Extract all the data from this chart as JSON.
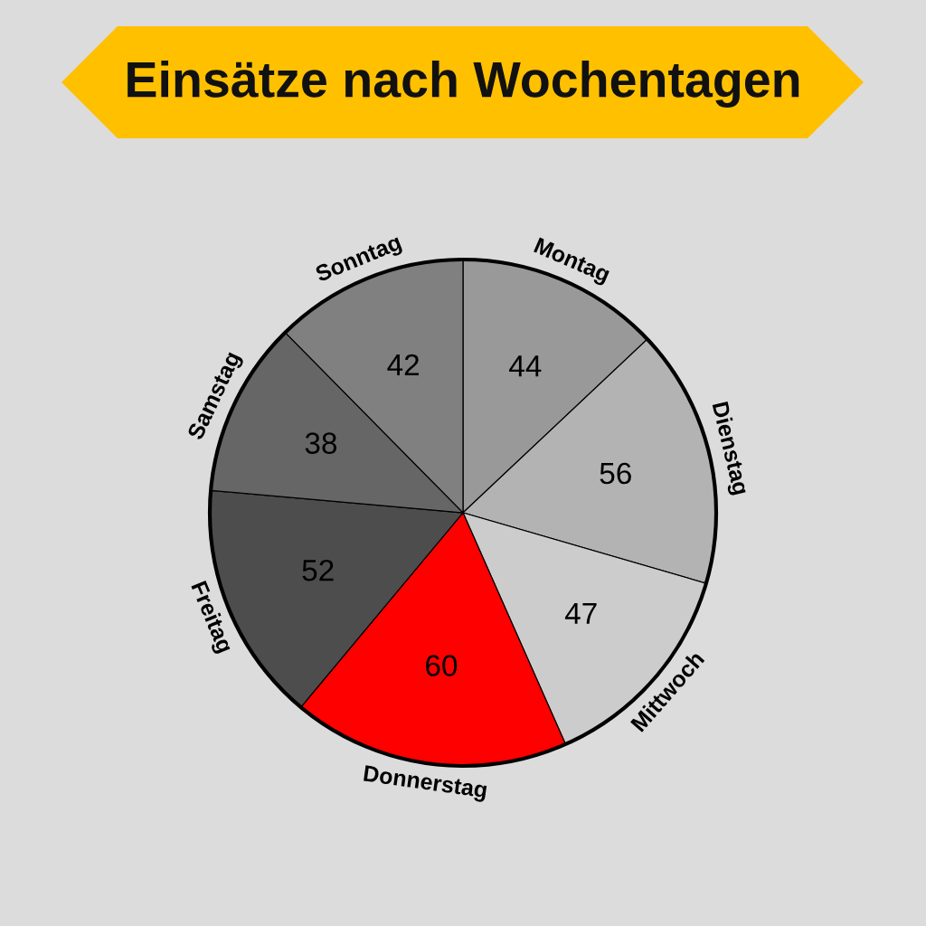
{
  "chart_data": {
    "type": "pie",
    "title": "Einsätze nach Wochentagen",
    "categories": [
      "Montag",
      "Dienstag",
      "Mittwoch",
      "Donnerstag",
      "Freitag",
      "Samstag",
      "Sonntag"
    ],
    "values": [
      44,
      56,
      47,
      60,
      52,
      38,
      42
    ],
    "colors": [
      "#999999",
      "#b3b3b3",
      "#cccccc",
      "#ff0000",
      "#4d4d4d",
      "#666666",
      "#808080"
    ],
    "data_labels": true,
    "legend": false
  }
}
